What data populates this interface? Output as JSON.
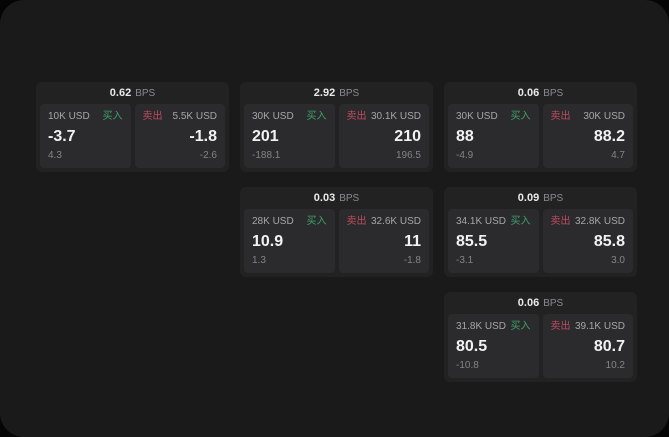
{
  "colors": {
    "buy": "#3fa06a",
    "sell": "#c04a60",
    "surface": "#1a1a1b",
    "card": "#222223",
    "panel": "#2b2b2d"
  },
  "labels": {
    "bps": "BPS",
    "buy": "买入",
    "sell": "卖出"
  },
  "cards": [
    {
      "bps": "0.62",
      "col": 1,
      "row": 1,
      "buy": {
        "amount": "10K USD",
        "value": "-3.7",
        "sub": "4.3"
      },
      "sell": {
        "amount": "5.5K USD",
        "value": "-1.8",
        "sub": "-2.6"
      }
    },
    {
      "bps": "2.92",
      "col": 2,
      "row": 1,
      "buy": {
        "amount": "30K USD",
        "value": "201",
        "sub": "-188.1"
      },
      "sell": {
        "amount": "30.1K USD",
        "value": "210",
        "sub": "196.5"
      }
    },
    {
      "bps": "0.06",
      "col": 3,
      "row": 1,
      "buy": {
        "amount": "30K USD",
        "value": "88",
        "sub": "-4.9"
      },
      "sell": {
        "amount": "30K USD",
        "value": "88.2",
        "sub": "4.7"
      }
    },
    {
      "bps": "0.03",
      "col": 2,
      "row": 2,
      "buy": {
        "amount": "28K USD",
        "value": "10.9",
        "sub": "1.3"
      },
      "sell": {
        "amount": "32.6K USD",
        "value": "11",
        "sub": "-1.8"
      }
    },
    {
      "bps": "0.09",
      "col": 3,
      "row": 2,
      "buy": {
        "amount": "34.1K USD",
        "value": "85.5",
        "sub": "-3.1"
      },
      "sell": {
        "amount": "32.8K USD",
        "value": "85.8",
        "sub": "3.0"
      }
    },
    {
      "bps": "0.06",
      "col": 3,
      "row": 3,
      "buy": {
        "amount": "31.8K USD",
        "value": "80.5",
        "sub": "-10.8"
      },
      "sell": {
        "amount": "39.1K USD",
        "value": "80.7",
        "sub": "10.2"
      }
    }
  ]
}
